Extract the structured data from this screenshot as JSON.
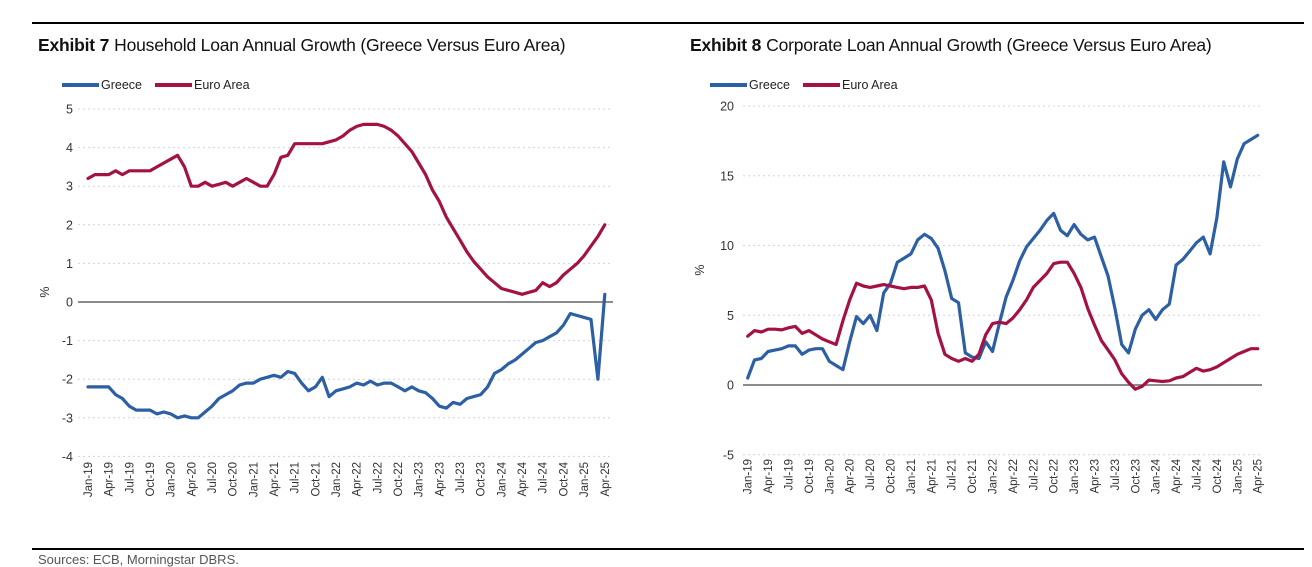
{
  "page": {
    "sources_note": "Sources: ECB, Morningstar DBRS.",
    "rule_color": "#000000",
    "grid_color": "#d4d4d4",
    "zero_line_color": "#666666"
  },
  "chart_data": [
    {
      "type": "line",
      "id": "exhibit-7",
      "exhibit": "Exhibit 7",
      "title": "Household Loan Annual Growth (Greece Versus Euro Area)",
      "ylabel": "%",
      "ylim": [
        -4,
        5
      ],
      "yticks": [
        5,
        4,
        3,
        2,
        1,
        0,
        -1,
        -2,
        -3,
        -4
      ],
      "x_frequency": "monthly",
      "x_start": "Jan-19",
      "x_end": "Apr-25",
      "x_tick_labels": [
        "Jan-19",
        "Apr-19",
        "Jul-19",
        "Oct-19",
        "Jan-20",
        "Apr-20",
        "Jul-20",
        "Oct-20",
        "Jan-21",
        "Apr-21",
        "Jul-21",
        "Oct-21",
        "Jan-22",
        "Apr-22",
        "Jul-22",
        "Oct-22",
        "Jan-23",
        "Apr-23",
        "Jul-23",
        "Oct-23",
        "Jan-24",
        "Apr-24",
        "Jul-24",
        "Oct-24",
        "Jan-25",
        "Apr-25"
      ],
      "grid": "horizontal-dashed",
      "legend_position": "top-left",
      "series": [
        {
          "name": "Greece",
          "color": "#2C5FA3",
          "values": [
            -2.2,
            -2.2,
            -2.2,
            -2.2,
            -2.4,
            -2.5,
            -2.7,
            -2.8,
            -2.8,
            -2.8,
            -2.9,
            -2.85,
            -2.9,
            -3.0,
            -2.95,
            -3.0,
            -3.0,
            -2.85,
            -2.7,
            -2.5,
            -2.4,
            -2.3,
            -2.15,
            -2.1,
            -2.1,
            -2.0,
            -1.95,
            -1.9,
            -1.95,
            -1.8,
            -1.85,
            -2.1,
            -2.3,
            -2.2,
            -1.95,
            -2.45,
            -2.3,
            -2.25,
            -2.2,
            -2.1,
            -2.15,
            -2.05,
            -2.15,
            -2.1,
            -2.1,
            -2.2,
            -2.3,
            -2.2,
            -2.3,
            -2.35,
            -2.5,
            -2.7,
            -2.75,
            -2.6,
            -2.65,
            -2.5,
            -2.45,
            -2.4,
            -2.2,
            -1.85,
            -1.75,
            -1.6,
            -1.5,
            -1.35,
            -1.2,
            -1.05,
            -1.0,
            -0.9,
            -0.8,
            -0.6,
            -0.3,
            -0.35,
            -0.4,
            -0.45,
            -2.0,
            0.2
          ]
        },
        {
          "name": "Euro Area",
          "color": "#A41245",
          "values": [
            3.2,
            3.3,
            3.3,
            3.3,
            3.4,
            3.3,
            3.4,
            3.4,
            3.4,
            3.4,
            3.5,
            3.6,
            3.7,
            3.8,
            3.5,
            3.0,
            3.0,
            3.1,
            3.0,
            3.05,
            3.1,
            3.0,
            3.1,
            3.2,
            3.1,
            3.0,
            3.0,
            3.3,
            3.75,
            3.8,
            4.1,
            4.1,
            4.1,
            4.1,
            4.1,
            4.15,
            4.2,
            4.3,
            4.45,
            4.55,
            4.6,
            4.6,
            4.6,
            4.55,
            4.45,
            4.3,
            4.1,
            3.9,
            3.6,
            3.3,
            2.9,
            2.6,
            2.2,
            1.9,
            1.6,
            1.3,
            1.05,
            0.85,
            0.65,
            0.5,
            0.35,
            0.3,
            0.25,
            0.2,
            0.25,
            0.3,
            0.5,
            0.4,
            0.5,
            0.7,
            0.85,
            1.0,
            1.2,
            1.45,
            1.7,
            2.0
          ]
        }
      ]
    },
    {
      "type": "line",
      "id": "exhibit-8",
      "exhibit": "Exhibit 8",
      "title": "Corporate Loan Annual Growth (Greece Versus Euro Area)",
      "ylabel": "%",
      "ylim": [
        -5,
        20
      ],
      "yticks": [
        20,
        15,
        10,
        5,
        0,
        -5
      ],
      "x_frequency": "monthly",
      "x_start": "Jan-19",
      "x_end": "Apr-25",
      "x_tick_labels": [
        "Jan-19",
        "Apr-19",
        "Jul-19",
        "Oct-19",
        "Jan-20",
        "Apr-20",
        "Jul-20",
        "Oct-20",
        "Jan-21",
        "Apr-21",
        "Jul-21",
        "Oct-21",
        "Jan-22",
        "Apr-22",
        "Jul-22",
        "Oct-22",
        "Jan-23",
        "Apr-23",
        "Jul-23",
        "Oct-23",
        "Jan-24",
        "Apr-24",
        "Jul-24",
        "Oct-24",
        "Jan-25",
        "Apr-25"
      ],
      "grid": "horizontal-dashed",
      "legend_position": "top-left",
      "series": [
        {
          "name": "Greece",
          "color": "#2C5FA3",
          "values": [
            0.5,
            1.8,
            1.9,
            2.4,
            2.5,
            2.6,
            2.8,
            2.8,
            2.2,
            2.5,
            2.6,
            2.6,
            1.7,
            1.4,
            1.1,
            3.1,
            4.9,
            4.4,
            5.0,
            3.9,
            6.6,
            7.3,
            8.8,
            9.1,
            9.4,
            10.4,
            10.8,
            10.5,
            9.8,
            8.2,
            6.2,
            5.9,
            2.3,
            2.0,
            1.9,
            3.1,
            2.4,
            4.4,
            6.3,
            7.5,
            8.9,
            9.9,
            10.5,
            11.1,
            11.8,
            12.3,
            11.1,
            10.7,
            11.5,
            10.8,
            10.4,
            10.6,
            9.2,
            7.8,
            5.5,
            2.9,
            2.3,
            4.0,
            5.0,
            5.4,
            4.7,
            5.4,
            5.8,
            8.6,
            9.0,
            9.6,
            10.2,
            10.6,
            9.4,
            12.0,
            16.0,
            14.2,
            16.2,
            17.3,
            17.6,
            17.9
          ]
        },
        {
          "name": "Euro Area",
          "color": "#A41245",
          "values": [
            3.5,
            3.9,
            3.8,
            4.0,
            4.0,
            3.95,
            4.1,
            4.2,
            3.7,
            3.9,
            3.6,
            3.3,
            3.1,
            2.9,
            4.6,
            6.1,
            7.3,
            7.1,
            7.0,
            7.1,
            7.2,
            7.1,
            7.0,
            6.9,
            7.0,
            7.0,
            7.1,
            6.1,
            3.7,
            2.2,
            1.9,
            1.7,
            1.9,
            1.7,
            2.2,
            3.6,
            4.4,
            4.5,
            4.4,
            4.8,
            5.4,
            6.1,
            7.0,
            7.5,
            8.0,
            8.7,
            8.8,
            8.8,
            8.0,
            7.0,
            5.5,
            4.3,
            3.2,
            2.5,
            1.8,
            0.8,
            0.2,
            -0.3,
            -0.1,
            0.35,
            0.3,
            0.25,
            0.3,
            0.5,
            0.6,
            0.9,
            1.2,
            1.0,
            1.1,
            1.3,
            1.6,
            1.9,
            2.2,
            2.4,
            2.6,
            2.6
          ]
        }
      ]
    }
  ]
}
